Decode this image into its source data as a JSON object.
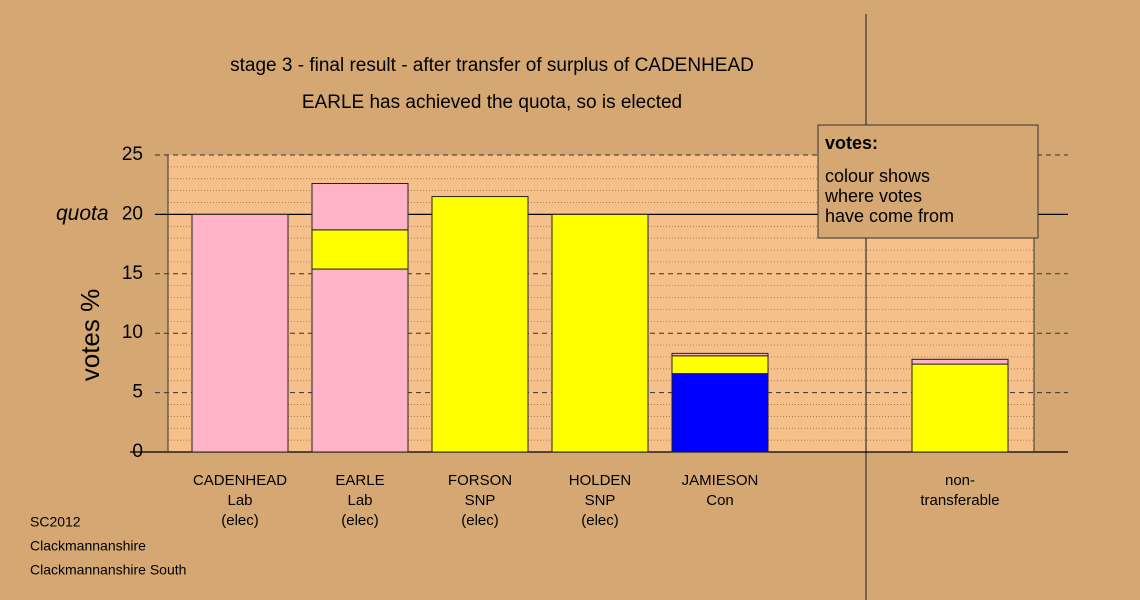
{
  "chart_data": {
    "type": "stacked-bar",
    "title": "stage 3 - final result - after transfer of surplus of CADENHEAD",
    "subtitle": "EARLE has achieved the quota, so is elected",
    "y_label": "votes %",
    "quota_label": "quota",
    "quota": 20,
    "categories": [
      [
        "CADENHEAD",
        "Lab",
        "(elec)"
      ],
      [
        "EARLE",
        "Lab",
        "(elec)"
      ],
      [
        "FORSON",
        "SNP",
        "(elec)"
      ],
      [
        "HOLDEN",
        "SNP",
        "(elec)"
      ],
      [
        "JAMIESON",
        "Con"
      ],
      null,
      [
        "non-",
        "transferable"
      ]
    ],
    "stacks": [
      [
        {
          "value": 20,
          "color": "#ffb3c6"
        }
      ],
      [
        {
          "value": 15.4,
          "color": "#ffb3c6"
        },
        {
          "value": 3.3,
          "color": "#ffff00"
        },
        {
          "value": 3.9,
          "color": "#ffb3c6"
        }
      ],
      [
        {
          "value": 21.5,
          "color": "#ffff00"
        }
      ],
      [
        {
          "value": 20,
          "color": "#ffff00"
        }
      ],
      [
        {
          "value": 6.6,
          "color": "#0000ff"
        },
        {
          "value": 1.5,
          "color": "#ffff00"
        },
        {
          "value": 0.2,
          "color": "#ffb3c6"
        }
      ],
      [],
      [
        {
          "value": 7.4,
          "color": "#ffff00"
        },
        {
          "value": 0.4,
          "color": "#ffb3c6"
        }
      ]
    ],
    "ylim": [
      0,
      25
    ],
    "yticks": [
      0,
      5,
      10,
      15,
      20,
      25
    ],
    "grid": true,
    "legend": {
      "title": "votes:",
      "lines": [
        "colour shows",
        "where votes",
        "have come from"
      ]
    },
    "footer": [
      "SC2012",
      "Clackmannanshire",
      "Clackmannanshire South"
    ]
  }
}
